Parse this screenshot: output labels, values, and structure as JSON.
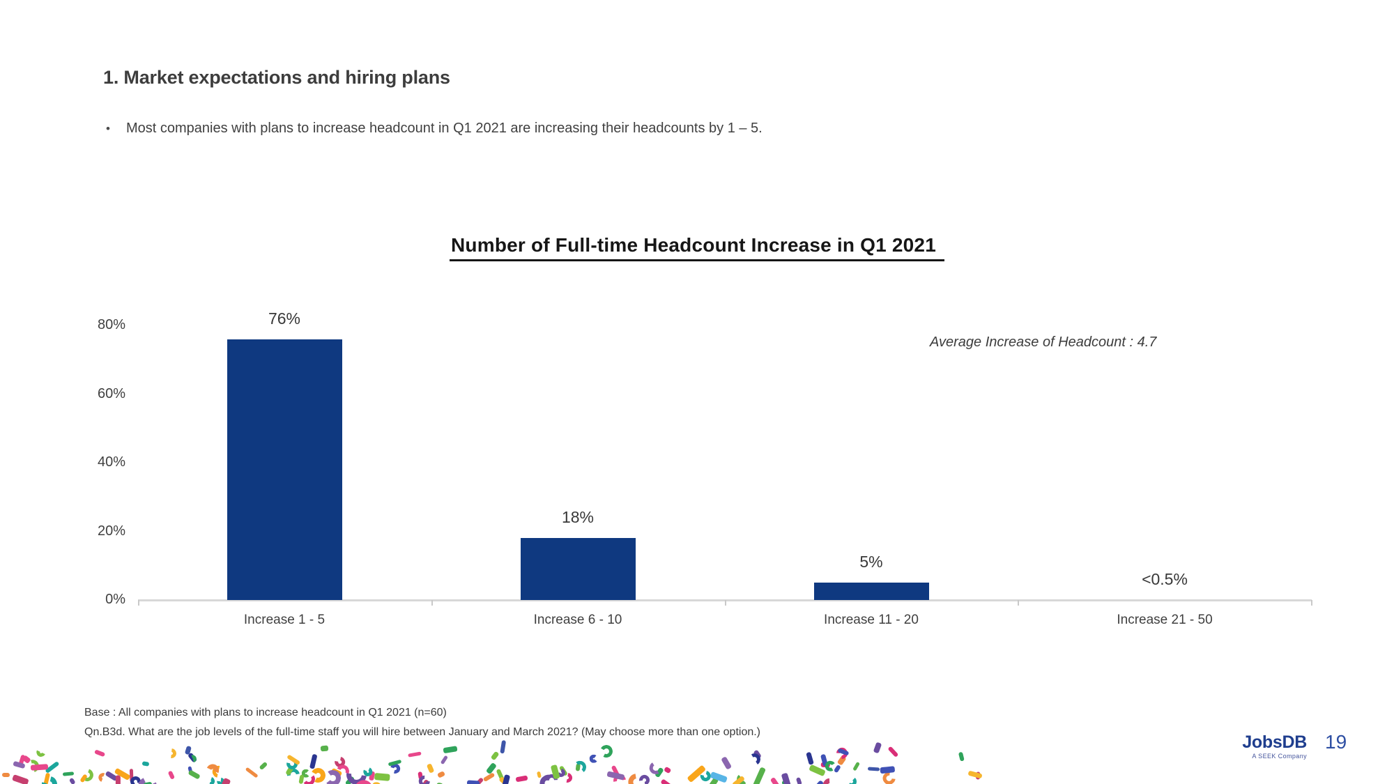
{
  "page": {
    "heading": "1. Market expectations and hiring plans",
    "bullet_marker": "•",
    "bullet": "Most companies with plans to increase headcount in Q1 2021 are increasing their headcounts by 1 – 5.",
    "footnote_line1": "Base : All companies with plans to increase headcount in Q1 2021 (n=60)",
    "footnote_line2": "Qn.B3d. What are the job levels of the full-time staff you will hire between January and March 2021? (May choose more than one option.)",
    "page_number": "19",
    "logo": {
      "name": "JobsDB",
      "tagline": "A SEEK Company"
    }
  },
  "chart_data": {
    "type": "bar",
    "title": "Number of Full-time Headcount Increase in Q1 2021",
    "categories": [
      "Increase 1 - 5",
      "Increase 6 - 10",
      "Increase 11 - 20",
      "Increase 21 - 50"
    ],
    "values": [
      76,
      18,
      5,
      0.4
    ],
    "value_labels": [
      "76%",
      "18%",
      "5%",
      "<0.5%"
    ],
    "annotation": "Average Increase of Headcount : 4.7",
    "ylabel_ticks": [
      "80%",
      "60%",
      "40%",
      "20%",
      "0%"
    ],
    "ylim": [
      0,
      80
    ],
    "grid": false,
    "legend": "none",
    "bar_color": "#0f3980",
    "axis_color": "#d8d8d8",
    "label_color": "#3f3f3f"
  },
  "colors": {
    "brand_navy": "#1f3e8e",
    "page_number_blue": "#2e4fa3",
    "confetti_palette": [
      "#e8478b",
      "#d92e77",
      "#c63f6f",
      "#f6b52e",
      "#f9a51a",
      "#ef8b41",
      "#57b14b",
      "#2fa35b",
      "#7dc242",
      "#1ca69c",
      "#58b5e6",
      "#3e56a9",
      "#2a3590",
      "#8b66af",
      "#6a4ca0",
      "#3f51b5"
    ]
  }
}
